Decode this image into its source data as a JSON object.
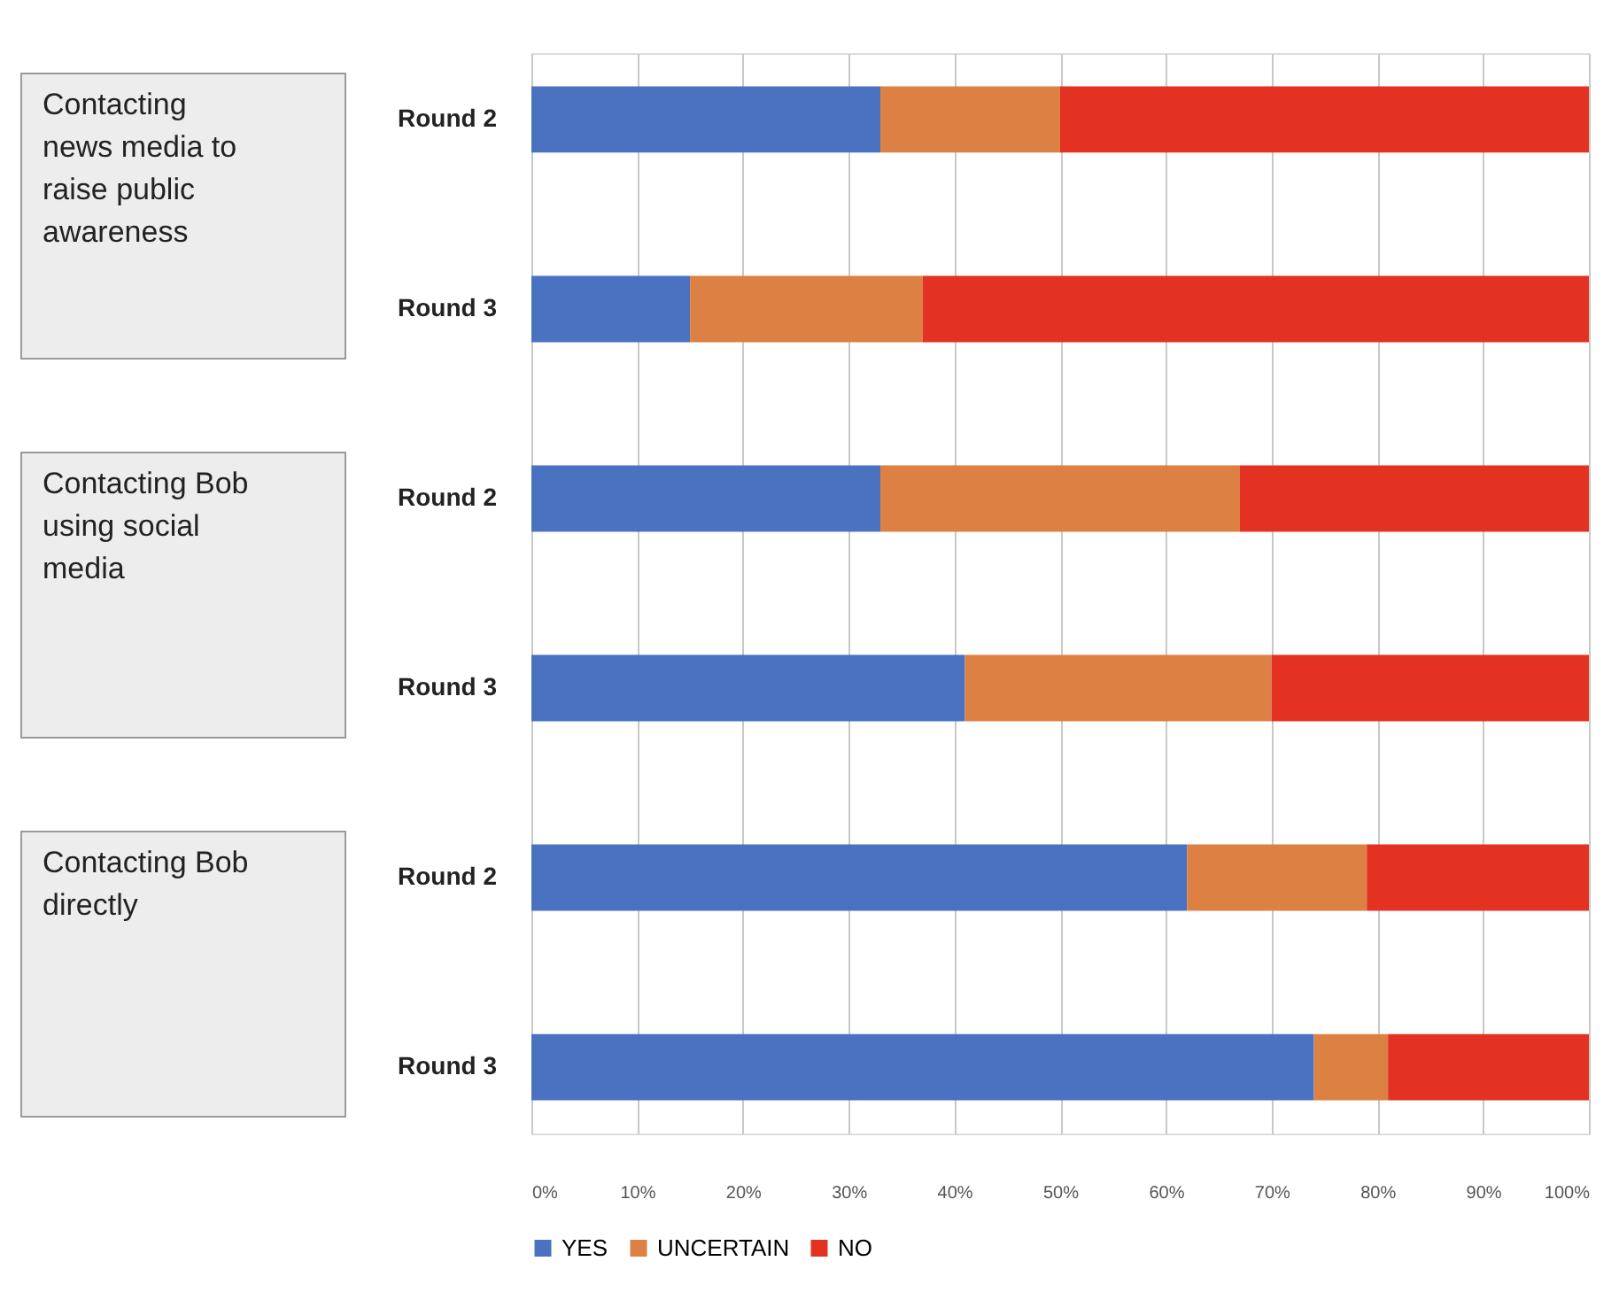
{
  "chart_data": {
    "type": "bar",
    "orientation": "horizontal",
    "stacked": true,
    "categories": [
      "Round 2",
      "Round 3",
      "Round 2",
      "Round 3",
      "Round 2",
      "Round 3"
    ],
    "series": [
      {
        "name": "YES",
        "color": "#4a72c0",
        "values": [
          33,
          15,
          33,
          41,
          62,
          74
        ]
      },
      {
        "name": "UNCERTAIN",
        "color": "#dc8043",
        "values": [
          17,
          22,
          34,
          29,
          17,
          7
        ]
      },
      {
        "name": "NO",
        "color": "#e33222",
        "values": [
          50,
          63,
          33,
          30,
          21,
          19
        ]
      }
    ],
    "xlim": [
      0,
      100
    ],
    "xticks": [
      {
        "value": 0,
        "label": "0%"
      },
      {
        "value": 10,
        "label": "10%"
      },
      {
        "value": 20,
        "label": "20%"
      },
      {
        "value": 30,
        "label": "30%"
      },
      {
        "value": 40,
        "label": "40%"
      },
      {
        "value": 50,
        "label": "50%"
      },
      {
        "value": 60,
        "label": "60%"
      },
      {
        "value": 70,
        "label": "70%"
      },
      {
        "value": 80,
        "label": "80%"
      },
      {
        "value": 90,
        "label": "90%"
      },
      {
        "value": 100,
        "label": "100%"
      }
    ],
    "grid": "x",
    "legend": "bottom",
    "annotations": [
      "Contacting news media to raise public awareness",
      "Contacting Bob using social media",
      "Contacting Bob directly"
    ]
  }
}
